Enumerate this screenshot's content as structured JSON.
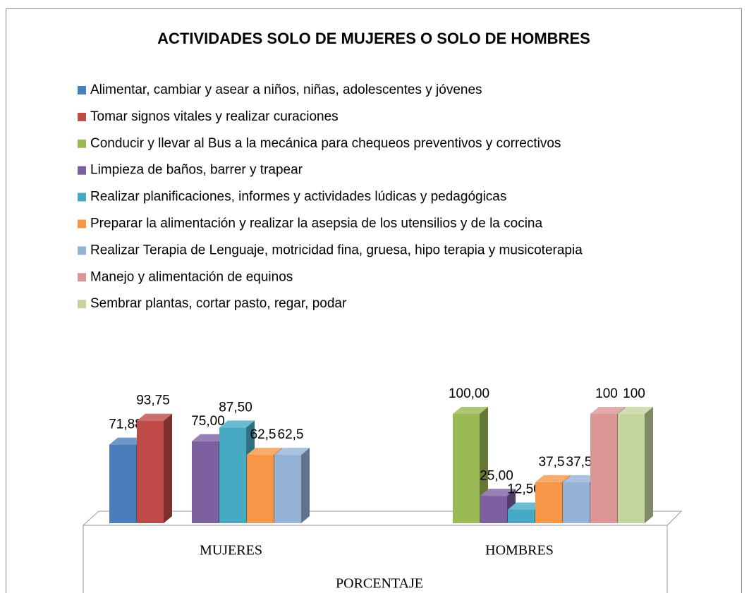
{
  "chart_data": {
    "type": "bar3d",
    "title": "ACTIVIDADES SOLO DE MUJERES O SOLO  DE HOMBRES",
    "x_label": "PORCENTAJE",
    "categories": [
      "MUJERES",
      "HOMBRES"
    ],
    "series": [
      {
        "name": "Alimentar, cambiar y asear a niños,  niñas, adolescentes y jóvenes",
        "color": "#4a7ebb",
        "values": [
          71.88,
          null
        ],
        "value_labels": [
          "71,88",
          null
        ]
      },
      {
        "name": "Tomar signos vitales y realizar curaciones",
        "color": "#be4b48",
        "values": [
          93.75,
          null
        ],
        "value_labels": [
          "93,75",
          null
        ]
      },
      {
        "name": "Conducir y llevar al Bus a la mecánica para chequeos preventivos y correctivos",
        "color": "#98b954",
        "values": [
          null,
          100.0
        ],
        "value_labels": [
          null,
          "100,00"
        ]
      },
      {
        "name": "Limpieza de baños, barrer y trapear",
        "color": "#7d60a0",
        "values": [
          75.0,
          25.0
        ],
        "value_labels": [
          "75,00",
          "25,00"
        ]
      },
      {
        "name": "Realizar planificaciones, informes y actividades lúdicas y pedagógicas",
        "color": "#46aac5",
        "values": [
          87.5,
          12.5
        ],
        "value_labels": [
          "87,50",
          "12,50"
        ]
      },
      {
        "name": "Preparar la alimentación y realizar la asepsia de los  utensilios y de la cocina",
        "color": "#f79646",
        "values": [
          62.5,
          37.5
        ],
        "value_labels": [
          "62,5",
          "37,5"
        ]
      },
      {
        "name": "Realizar Terapia de Lenguaje, motricidad fina, gruesa, hipo terapia y musicoterapia",
        "color": "#95b3d7",
        "values": [
          62.5,
          37.5
        ],
        "value_labels": [
          "62,5",
          "37,5"
        ]
      },
      {
        "name": "Manejo y alimentación de equinos",
        "color": "#d99694",
        "values": [
          null,
          100
        ],
        "value_labels": [
          null,
          "100"
        ]
      },
      {
        "name": "Sembrar plantas, cortar pasto, regar, podar",
        "color": "#c3d69b",
        "values": [
          null,
          100
        ],
        "value_labels": [
          null,
          "100"
        ]
      }
    ]
  }
}
